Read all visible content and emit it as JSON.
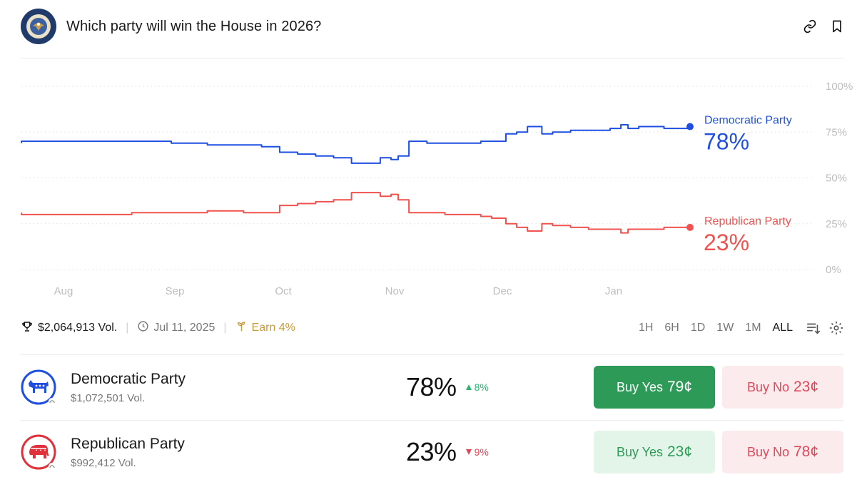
{
  "header": {
    "title": "Which party will win the House in 2026?",
    "seal_icon": "us-house-seal-icon",
    "link_icon": "link-icon",
    "bookmark_icon": "bookmark-icon"
  },
  "chart_data": {
    "type": "line",
    "x_tick_labels": [
      "Aug",
      "Sep",
      "Oct",
      "Nov",
      "Dec",
      "Jan"
    ],
    "y_tick_labels": [
      "100%",
      "75%",
      "50%",
      "25%",
      "0%"
    ],
    "ylim": [
      0,
      100
    ],
    "grid": true,
    "series": [
      {
        "name": "Democratic Party",
        "label_value": "78%",
        "color": "#1f4fe0",
        "x": [
          "Jul 11",
          "Jul 15",
          "Jul 20",
          "Jul 25",
          "Jul 31",
          "Aug 10",
          "Aug 20",
          "Aug 31",
          "Sep 10",
          "Sep 20",
          "Sep 25",
          "Sep 30",
          "Oct 5",
          "Oct 10",
          "Oct 15",
          "Oct 20",
          "Oct 25",
          "Oct 28",
          "Oct 31",
          "Nov 2",
          "Nov 5",
          "Nov 10",
          "Nov 15",
          "Nov 20",
          "Nov 25",
          "Nov 28",
          "Dec 2",
          "Dec 5",
          "Dec 8",
          "Dec 12",
          "Dec 15",
          "Dec 20",
          "Dec 25",
          "Dec 31",
          "Jan 3",
          "Jan 5",
          "Jan 8",
          "Jan 12",
          "Jan 15",
          "Jan 20"
        ],
        "values": [
          69,
          69,
          70,
          70,
          70,
          70,
          70,
          69,
          68,
          68,
          67,
          64,
          63,
          62,
          61,
          58,
          58,
          61,
          60,
          62,
          70,
          69,
          69,
          69,
          70,
          70,
          74,
          75,
          78,
          74,
          75,
          76,
          76,
          77,
          79,
          77,
          78,
          78,
          77,
          78
        ]
      },
      {
        "name": "Republican Party",
        "label_value": "23%",
        "color": "#f0524f",
        "x": [
          "Jul 11",
          "Jul 15",
          "Jul 20",
          "Jul 25",
          "Jul 31",
          "Aug 10",
          "Aug 20",
          "Aug 31",
          "Sep 10",
          "Sep 20",
          "Sep 25",
          "Sep 30",
          "Oct 5",
          "Oct 10",
          "Oct 15",
          "Oct 20",
          "Oct 25",
          "Oct 28",
          "Oct 31",
          "Nov 2",
          "Nov 5",
          "Nov 10",
          "Nov 15",
          "Nov 20",
          "Nov 25",
          "Nov 28",
          "Dec 2",
          "Dec 5",
          "Dec 8",
          "Dec 12",
          "Dec 15",
          "Dec 20",
          "Dec 25",
          "Dec 31",
          "Jan 3",
          "Jan 5",
          "Jan 8",
          "Jan 12",
          "Jan 15",
          "Jan 20"
        ],
        "values": [
          31,
          30,
          30,
          30,
          30,
          30,
          31,
          31,
          32,
          31,
          31,
          35,
          36,
          37,
          38,
          42,
          42,
          40,
          41,
          38,
          31,
          31,
          30,
          30,
          29,
          28,
          25,
          23,
          21,
          25,
          24,
          23,
          22,
          22,
          20,
          22,
          22,
          22,
          23,
          23
        ]
      }
    ]
  },
  "infobar": {
    "volume": "$2,064,913 Vol.",
    "date": "Jul 11, 2025",
    "earn": "Earn 4%",
    "ranges": [
      "1H",
      "6H",
      "1D",
      "1W",
      "1M",
      "ALL"
    ],
    "active_range": "ALL",
    "trophy_icon": "trophy-icon",
    "clock_icon": "clock-icon",
    "sprout_icon": "sprout-icon",
    "sort_icon": "sort-icon",
    "settings_icon": "gear-icon"
  },
  "markets": [
    {
      "name": "Democratic Party",
      "volume": "$1,072,501 Vol.",
      "percent": "78%",
      "change": "8%",
      "change_direction": "up",
      "buy_yes_label": "Buy Yes",
      "buy_yes_price": "79¢",
      "buy_no_label": "Buy No",
      "buy_no_price": "23¢",
      "logo_icon": "democratic-donkey-icon",
      "color": "#1f4fe0"
    },
    {
      "name": "Republican Party",
      "volume": "$992,412 Vol.",
      "percent": "23%",
      "change": "9%",
      "change_direction": "down",
      "buy_yes_label": "Buy Yes",
      "buy_yes_price": "23¢",
      "buy_no_label": "Buy No",
      "buy_no_price": "78¢",
      "logo_icon": "republican-elephant-icon",
      "color": "#e0303a"
    }
  ]
}
